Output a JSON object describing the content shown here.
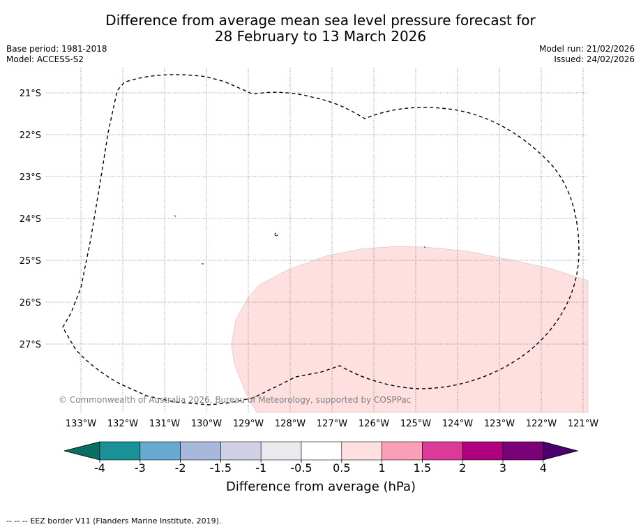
{
  "title": {
    "line1": "Difference from average mean sea level pressure forecast for",
    "line2": "28 February to 13 March 2026"
  },
  "meta": {
    "base_period": "Base period: 1981-2018",
    "model": "Model: ACCESS-S2",
    "model_run": "Model run: 21/02/2026",
    "issued": "Issued: 24/02/2026"
  },
  "map": {
    "lat_labels": [
      "21°S",
      "22°S",
      "23°S",
      "24°S",
      "25°S",
      "26°S",
      "27°S"
    ],
    "lon_labels": [
      "133°W",
      "132°W",
      "131°W",
      "130°W",
      "129°W",
      "128°W",
      "127°W",
      "126°W",
      "125°W",
      "124°W",
      "123°W",
      "122°W",
      "121°W"
    ],
    "copyright": "© Commonwealth of Australia 2026, Bureau of Meteorology, supported by COSPPac",
    "anomaly_region": {
      "category": "0.5 to 1 hPa",
      "color": "#fde0df"
    }
  },
  "colorbar": {
    "ticks": [
      "-4",
      "-3",
      "-2",
      "-1.5",
      "-1",
      "-0.5",
      "0.5",
      "1",
      "1.5",
      "2",
      "3",
      "4"
    ],
    "colors": [
      "#1a9197",
      "#67aad1",
      "#a7b8da",
      "#d0d1e6",
      "#ebe9ee",
      "#ffffff",
      "#fde0df",
      "#f9a0b8",
      "#dc3a99",
      "#ae017e",
      "#7a0177"
    ],
    "under_color": "#0a6e64",
    "over_color": "#49006a",
    "label": "Difference from average (hPa)"
  },
  "footer": {
    "legend_symbol": "--  --  --",
    "text": "EEZ border V11 (Flanders Marine Institute, 2019)."
  }
}
